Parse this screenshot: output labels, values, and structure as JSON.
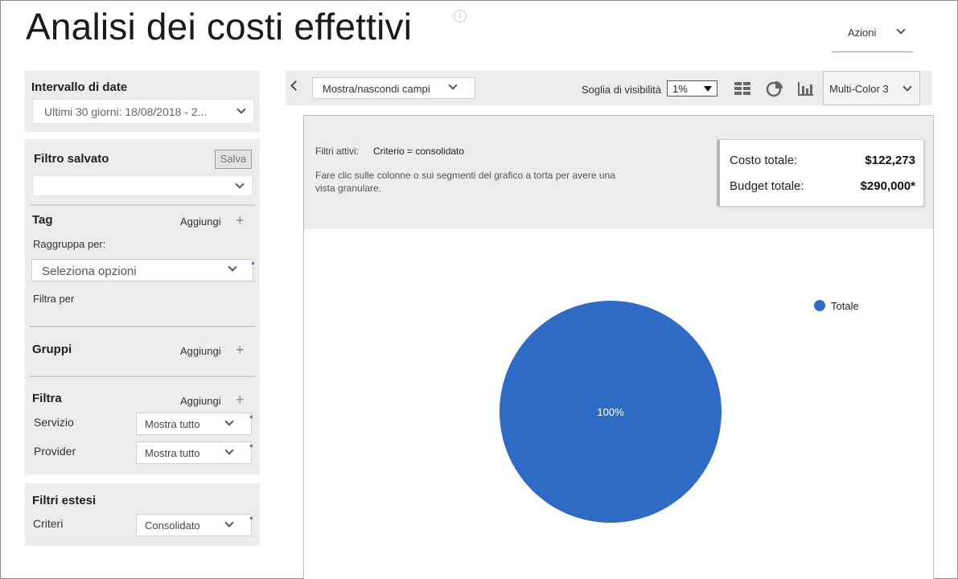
{
  "page": {
    "title": "Analisi dei costi effettivi",
    "info_icon": "info-icon"
  },
  "header": {
    "actions_label": "Azioni"
  },
  "date_range": {
    "title": "Intervallo di date",
    "value": "Ultimi 30 giorni: 18/08/2018 - 2..."
  },
  "saved_filter": {
    "title": "Filtro salvato",
    "save_label": "Salva",
    "value": ""
  },
  "tag": {
    "title": "Tag",
    "add_label": "Aggiungi",
    "group_by_label": "Raggruppa per:",
    "group_by_placeholder": "Seleziona opzioni",
    "filter_by_label": "Filtra per"
  },
  "groups": {
    "title": "Gruppi",
    "add_label": "Aggiungi"
  },
  "filter": {
    "title": "Filtra",
    "add_label": "Aggiungi",
    "rows": [
      {
        "label": "Servizio",
        "value": "Mostra tutto"
      },
      {
        "label": "Provider",
        "value": "Mostra tutto"
      }
    ]
  },
  "extended_filters": {
    "title": "Filtri estesi",
    "criteria_label": "Criteri",
    "criteria_value": "Consolidato"
  },
  "toolbar": {
    "fields_label": "Mostra/nascondi campi",
    "visibility_label": "Soglia di visibilità",
    "visibility_value": "1%",
    "palette_value": "Multi-Color 3",
    "icons": [
      "grid-view-icon",
      "pie-chart-icon",
      "bar-chart-icon"
    ]
  },
  "active_filters": {
    "label": "Filtri attivi:",
    "value": "Criterio = consolidato",
    "hint": "Fare clic sulle colonne o sui segmenti del grafico a torta per avere una vista granulare."
  },
  "summary": {
    "cost_label": "Costo totale:",
    "cost_value": "$122,273",
    "budget_label": "Budget totale:",
    "budget_value": "$290,000*"
  },
  "colors": {
    "accent": "#2f6bc2",
    "panel_bg": "#ececec"
  },
  "chart_data": {
    "type": "pie",
    "title": "",
    "legend_position": "right",
    "categories": [
      "Totale"
    ],
    "values": [
      100
    ],
    "data_labels": [
      "100%"
    ],
    "colors": [
      "#2f6bc2"
    ]
  }
}
